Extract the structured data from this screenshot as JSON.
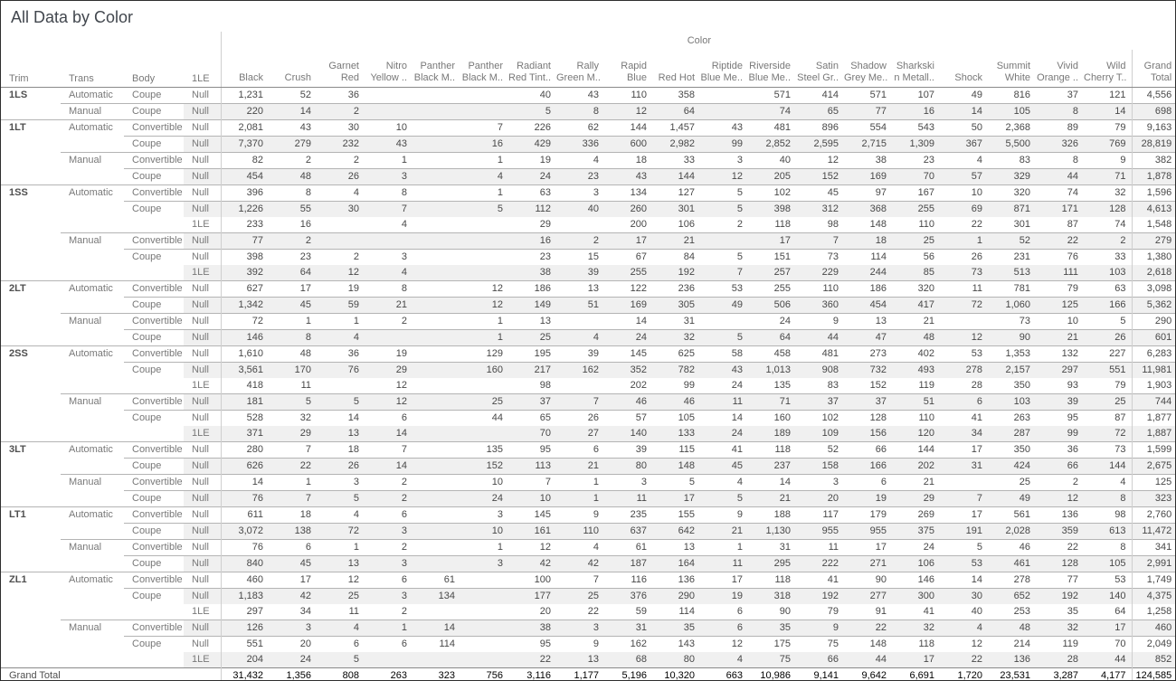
{
  "title": "All Data by Color",
  "table": {
    "color_axis_label": "Color",
    "row_headers": [
      "Trim",
      "Trans",
      "Body",
      "1LE"
    ],
    "columns": [
      [
        "",
        "Black"
      ],
      [
        "",
        "Crush"
      ],
      [
        "Garnet",
        "Red"
      ],
      [
        "Nitro",
        "Yellow .."
      ],
      [
        "Panther",
        "Black M.."
      ],
      [
        "Panther",
        "Black M.."
      ],
      [
        "Radiant",
        "Red Tint.."
      ],
      [
        "Rally",
        "Green M.."
      ],
      [
        "Rapid",
        "Blue"
      ],
      [
        "",
        "Red Hot"
      ],
      [
        "Riptide",
        "Blue Me.."
      ],
      [
        "Riverside",
        "Blue Me.."
      ],
      [
        "Satin",
        "Steel Gr.."
      ],
      [
        "Shadow",
        "Grey Me.."
      ],
      [
        "Sharkski",
        "n Metall.."
      ],
      [
        "",
        "Shock"
      ],
      [
        "Summit",
        "White"
      ],
      [
        "Vivid",
        "Orange .."
      ],
      [
        "Wild",
        "Cherry T.."
      ],
      [
        "Grand",
        "Total"
      ]
    ],
    "rows": [
      {
        "t": "1LS",
        "tr": "Automatic",
        "b": "Coupe",
        "le": "Null",
        "v": [
          "1,231",
          "52",
          "36",
          "",
          "",
          "",
          "40",
          "43",
          "110",
          "358",
          "",
          "571",
          "414",
          "571",
          "107",
          "49",
          "816",
          "37",
          "121",
          "4,556"
        ]
      },
      {
        "t": "",
        "tr": "Manual",
        "b": "Coupe",
        "le": "Null",
        "v": [
          "220",
          "14",
          "2",
          "",
          "",
          "",
          "5",
          "8",
          "12",
          "64",
          "",
          "74",
          "65",
          "77",
          "16",
          "14",
          "105",
          "8",
          "14",
          "698"
        ]
      },
      {
        "t": "1LT",
        "tr": "Automatic",
        "b": "Convertible",
        "le": "Null",
        "v": [
          "2,081",
          "43",
          "30",
          "10",
          "",
          "7",
          "226",
          "62",
          "144",
          "1,457",
          "43",
          "481",
          "896",
          "554",
          "543",
          "50",
          "2,368",
          "89",
          "79",
          "9,163"
        ]
      },
      {
        "t": "",
        "tr": "",
        "b": "Coupe",
        "le": "Null",
        "v": [
          "7,370",
          "279",
          "232",
          "43",
          "",
          "16",
          "429",
          "336",
          "600",
          "2,982",
          "99",
          "2,852",
          "2,595",
          "2,715",
          "1,309",
          "367",
          "5,500",
          "326",
          "769",
          "28,819"
        ]
      },
      {
        "t": "",
        "tr": "Manual",
        "b": "Convertible",
        "le": "Null",
        "v": [
          "82",
          "2",
          "2",
          "1",
          "",
          "1",
          "19",
          "4",
          "18",
          "33",
          "3",
          "40",
          "12",
          "38",
          "23",
          "4",
          "83",
          "8",
          "9",
          "382"
        ]
      },
      {
        "t": "",
        "tr": "",
        "b": "Coupe",
        "le": "Null",
        "v": [
          "454",
          "48",
          "26",
          "3",
          "",
          "4",
          "24",
          "23",
          "43",
          "144",
          "12",
          "205",
          "152",
          "169",
          "70",
          "57",
          "329",
          "44",
          "71",
          "1,878"
        ]
      },
      {
        "t": "1SS",
        "tr": "Automatic",
        "b": "Convertible",
        "le": "Null",
        "v": [
          "396",
          "8",
          "4",
          "8",
          "",
          "1",
          "63",
          "3",
          "134",
          "127",
          "5",
          "102",
          "45",
          "97",
          "167",
          "10",
          "320",
          "74",
          "32",
          "1,596"
        ]
      },
      {
        "t": "",
        "tr": "",
        "b": "Coupe",
        "le": "Null",
        "v": [
          "1,226",
          "55",
          "30",
          "7",
          "",
          "5",
          "112",
          "40",
          "260",
          "301",
          "5",
          "398",
          "312",
          "368",
          "255",
          "69",
          "871",
          "171",
          "128",
          "4,613"
        ]
      },
      {
        "t": "",
        "tr": "",
        "b": "",
        "le": "1LE",
        "v": [
          "233",
          "16",
          "",
          "4",
          "",
          "",
          "29",
          "",
          "200",
          "106",
          "2",
          "118",
          "98",
          "148",
          "110",
          "22",
          "301",
          "87",
          "74",
          "1,548"
        ]
      },
      {
        "t": "",
        "tr": "Manual",
        "b": "Convertible",
        "le": "Null",
        "v": [
          "77",
          "2",
          "",
          "",
          "",
          "",
          "16",
          "2",
          "17",
          "21",
          "",
          "17",
          "7",
          "18",
          "25",
          "1",
          "52",
          "22",
          "2",
          "279"
        ]
      },
      {
        "t": "",
        "tr": "",
        "b": "Coupe",
        "le": "Null",
        "v": [
          "398",
          "23",
          "2",
          "3",
          "",
          "",
          "23",
          "15",
          "67",
          "84",
          "5",
          "151",
          "73",
          "114",
          "56",
          "26",
          "231",
          "76",
          "33",
          "1,380"
        ]
      },
      {
        "t": "",
        "tr": "",
        "b": "",
        "le": "1LE",
        "v": [
          "392",
          "64",
          "12",
          "4",
          "",
          "",
          "38",
          "39",
          "255",
          "192",
          "7",
          "257",
          "229",
          "244",
          "85",
          "73",
          "513",
          "111",
          "103",
          "2,618"
        ]
      },
      {
        "t": "2LT",
        "tr": "Automatic",
        "b": "Convertible",
        "le": "Null",
        "v": [
          "627",
          "17",
          "19",
          "8",
          "",
          "12",
          "186",
          "13",
          "122",
          "236",
          "53",
          "255",
          "110",
          "186",
          "320",
          "11",
          "781",
          "79",
          "63",
          "3,098"
        ]
      },
      {
        "t": "",
        "tr": "",
        "b": "Coupe",
        "le": "Null",
        "v": [
          "1,342",
          "45",
          "59",
          "21",
          "",
          "12",
          "149",
          "51",
          "169",
          "305",
          "49",
          "506",
          "360",
          "454",
          "417",
          "72",
          "1,060",
          "125",
          "166",
          "5,362"
        ]
      },
      {
        "t": "",
        "tr": "Manual",
        "b": "Convertible",
        "le": "Null",
        "v": [
          "72",
          "1",
          "1",
          "2",
          "",
          "1",
          "13",
          "",
          "14",
          "31",
          "",
          "24",
          "9",
          "13",
          "21",
          "",
          "73",
          "10",
          "5",
          "290"
        ]
      },
      {
        "t": "",
        "tr": "",
        "b": "Coupe",
        "le": "Null",
        "v": [
          "146",
          "8",
          "4",
          "",
          "",
          "1",
          "25",
          "4",
          "24",
          "32",
          "5",
          "64",
          "44",
          "47",
          "48",
          "12",
          "90",
          "21",
          "26",
          "601"
        ]
      },
      {
        "t": "2SS",
        "tr": "Automatic",
        "b": "Convertible",
        "le": "Null",
        "v": [
          "1,610",
          "48",
          "36",
          "19",
          "",
          "129",
          "195",
          "39",
          "145",
          "625",
          "58",
          "458",
          "481",
          "273",
          "402",
          "53",
          "1,353",
          "132",
          "227",
          "6,283"
        ]
      },
      {
        "t": "",
        "tr": "",
        "b": "Coupe",
        "le": "Null",
        "v": [
          "3,561",
          "170",
          "76",
          "29",
          "",
          "160",
          "217",
          "162",
          "352",
          "782",
          "43",
          "1,013",
          "908",
          "732",
          "493",
          "278",
          "2,157",
          "297",
          "551",
          "11,981"
        ]
      },
      {
        "t": "",
        "tr": "",
        "b": "",
        "le": "1LE",
        "v": [
          "418",
          "11",
          "",
          "12",
          "",
          "",
          "98",
          "",
          "202",
          "99",
          "24",
          "135",
          "83",
          "152",
          "119",
          "28",
          "350",
          "93",
          "79",
          "1,903"
        ]
      },
      {
        "t": "",
        "tr": "Manual",
        "b": "Convertible",
        "le": "Null",
        "v": [
          "181",
          "5",
          "5",
          "12",
          "",
          "25",
          "37",
          "7",
          "46",
          "46",
          "11",
          "71",
          "37",
          "37",
          "51",
          "6",
          "103",
          "39",
          "25",
          "744"
        ]
      },
      {
        "t": "",
        "tr": "",
        "b": "Coupe",
        "le": "Null",
        "v": [
          "528",
          "32",
          "14",
          "6",
          "",
          "44",
          "65",
          "26",
          "57",
          "105",
          "14",
          "160",
          "102",
          "128",
          "110",
          "41",
          "263",
          "95",
          "87",
          "1,877"
        ]
      },
      {
        "t": "",
        "tr": "",
        "b": "",
        "le": "1LE",
        "v": [
          "371",
          "29",
          "13",
          "14",
          "",
          "",
          "70",
          "27",
          "140",
          "133",
          "24",
          "189",
          "109",
          "156",
          "120",
          "34",
          "287",
          "99",
          "72",
          "1,887"
        ]
      },
      {
        "t": "3LT",
        "tr": "Automatic",
        "b": "Convertible",
        "le": "Null",
        "v": [
          "280",
          "7",
          "18",
          "7",
          "",
          "135",
          "95",
          "6",
          "39",
          "115",
          "41",
          "118",
          "52",
          "66",
          "144",
          "17",
          "350",
          "36",
          "73",
          "1,599"
        ]
      },
      {
        "t": "",
        "tr": "",
        "b": "Coupe",
        "le": "Null",
        "v": [
          "626",
          "22",
          "26",
          "14",
          "",
          "152",
          "113",
          "21",
          "80",
          "148",
          "45",
          "237",
          "158",
          "166",
          "202",
          "31",
          "424",
          "66",
          "144",
          "2,675"
        ]
      },
      {
        "t": "",
        "tr": "Manual",
        "b": "Convertible",
        "le": "Null",
        "v": [
          "14",
          "1",
          "3",
          "2",
          "",
          "10",
          "7",
          "1",
          "3",
          "5",
          "4",
          "14",
          "3",
          "6",
          "21",
          "",
          "25",
          "2",
          "4",
          "125"
        ]
      },
      {
        "t": "",
        "tr": "",
        "b": "Coupe",
        "le": "Null",
        "v": [
          "76",
          "7",
          "5",
          "2",
          "",
          "24",
          "10",
          "1",
          "11",
          "17",
          "5",
          "21",
          "20",
          "19",
          "29",
          "7",
          "49",
          "12",
          "8",
          "323"
        ]
      },
      {
        "t": "LT1",
        "tr": "Automatic",
        "b": "Convertible",
        "le": "Null",
        "v": [
          "611",
          "18",
          "4",
          "6",
          "",
          "3",
          "145",
          "9",
          "235",
          "155",
          "9",
          "188",
          "117",
          "179",
          "269",
          "17",
          "561",
          "136",
          "98",
          "2,760"
        ]
      },
      {
        "t": "",
        "tr": "",
        "b": "Coupe",
        "le": "Null",
        "v": [
          "3,072",
          "138",
          "72",
          "3",
          "",
          "10",
          "161",
          "110",
          "637",
          "642",
          "21",
          "1,130",
          "955",
          "955",
          "375",
          "191",
          "2,028",
          "359",
          "613",
          "11,472"
        ]
      },
      {
        "t": "",
        "tr": "Manual",
        "b": "Convertible",
        "le": "Null",
        "v": [
          "76",
          "6",
          "1",
          "2",
          "",
          "1",
          "12",
          "4",
          "61",
          "13",
          "1",
          "31",
          "11",
          "17",
          "24",
          "5",
          "46",
          "22",
          "8",
          "341"
        ]
      },
      {
        "t": "",
        "tr": "",
        "b": "Coupe",
        "le": "Null",
        "v": [
          "840",
          "45",
          "13",
          "3",
          "",
          "3",
          "42",
          "42",
          "187",
          "164",
          "11",
          "295",
          "222",
          "271",
          "106",
          "53",
          "461",
          "128",
          "105",
          "2,991"
        ]
      },
      {
        "t": "ZL1",
        "tr": "Automatic",
        "b": "Convertible",
        "le": "Null",
        "v": [
          "460",
          "17",
          "12",
          "6",
          "61",
          "",
          "100",
          "7",
          "116",
          "136",
          "17",
          "118",
          "41",
          "90",
          "146",
          "14",
          "278",
          "77",
          "53",
          "1,749"
        ]
      },
      {
        "t": "",
        "tr": "",
        "b": "Coupe",
        "le": "Null",
        "v": [
          "1,183",
          "42",
          "25",
          "3",
          "134",
          "",
          "177",
          "25",
          "376",
          "290",
          "19",
          "318",
          "192",
          "277",
          "300",
          "30",
          "652",
          "192",
          "140",
          "4,375"
        ]
      },
      {
        "t": "",
        "tr": "",
        "b": "",
        "le": "1LE",
        "v": [
          "297",
          "34",
          "11",
          "2",
          "",
          "",
          "20",
          "22",
          "59",
          "114",
          "6",
          "90",
          "79",
          "91",
          "41",
          "40",
          "253",
          "35",
          "64",
          "1,258"
        ]
      },
      {
        "t": "",
        "tr": "Manual",
        "b": "Convertible",
        "le": "Null",
        "v": [
          "126",
          "3",
          "4",
          "1",
          "14",
          "",
          "38",
          "3",
          "31",
          "35",
          "6",
          "35",
          "9",
          "22",
          "32",
          "4",
          "48",
          "32",
          "17",
          "460"
        ]
      },
      {
        "t": "",
        "tr": "",
        "b": "Coupe",
        "le": "Null",
        "v": [
          "551",
          "20",
          "6",
          "6",
          "114",
          "",
          "95",
          "9",
          "162",
          "143",
          "12",
          "175",
          "75",
          "148",
          "118",
          "12",
          "214",
          "119",
          "70",
          "2,049"
        ]
      },
      {
        "t": "",
        "tr": "",
        "b": "",
        "le": "1LE",
        "v": [
          "204",
          "24",
          "5",
          "",
          "",
          "",
          "22",
          "13",
          "68",
          "80",
          "4",
          "75",
          "66",
          "44",
          "17",
          "22",
          "136",
          "28",
          "44",
          "852"
        ]
      }
    ],
    "grand_total_label": "Grand Total",
    "grand_total_values": [
      "31,432",
      "1,356",
      "808",
      "263",
      "323",
      "756",
      "3,116",
      "1,177",
      "5,196",
      "10,320",
      "663",
      "10,986",
      "9,141",
      "9,642",
      "6,691",
      "1,720",
      "23,531",
      "3,287",
      "4,177",
      "124,585"
    ]
  },
  "colors": {
    "band": "#f0f0f0",
    "group_line": "#b4b4b4",
    "header_line": "#8a8a8a",
    "divider_line": "#cfcfcf",
    "header_text": "#787878",
    "value_text": "#484848",
    "title_text": "#42474e"
  }
}
